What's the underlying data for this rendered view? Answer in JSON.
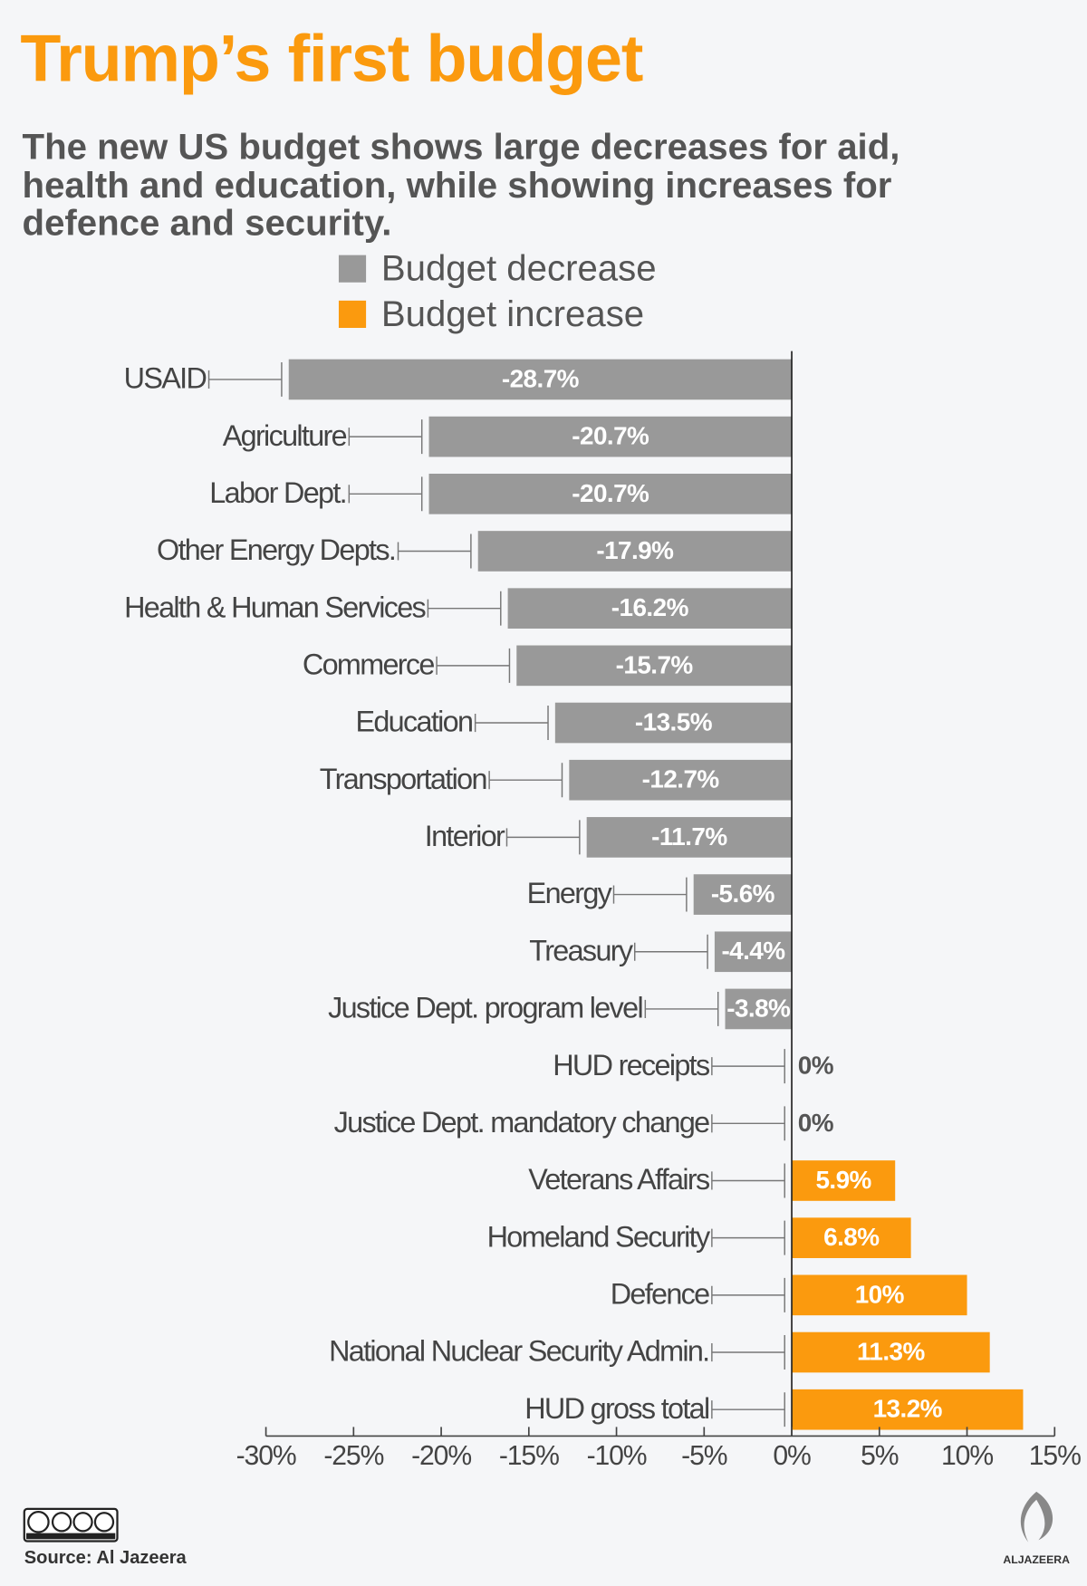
{
  "chart_data": {
    "type": "bar",
    "orientation": "horizontal",
    "title": "Trump’s first budget",
    "subtitle": [
      "The new US budget shows large decreases for aid,",
      "health and education, while showing increases for",
      "defence and security."
    ],
    "legend": [
      {
        "name": "Budget decrease",
        "color": "#999999"
      },
      {
        "name": "Budget increase",
        "color": "#fb9a0e"
      }
    ],
    "categories": [
      "USAID",
      "Agriculture",
      "Labor Dept.",
      "Other Energy Depts.",
      "Health & Human Services",
      "Commerce",
      "Education",
      "Transportation",
      "Interior",
      "Energy",
      "Treasury",
      "Justice Dept. program level",
      "HUD receipts",
      "Justice Dept. mandatory change",
      "Veterans Affairs",
      "Homeland Security",
      "Defence",
      "National Nuclear Security Admin.",
      "HUD gross total"
    ],
    "values": [
      -28.7,
      -20.7,
      -20.7,
      -17.9,
      -16.2,
      -15.7,
      -13.5,
      -12.7,
      -11.7,
      -5.6,
      -4.4,
      -3.8,
      0,
      0,
      5.9,
      6.8,
      10,
      11.3,
      13.2
    ],
    "value_labels": [
      "-28.7%",
      "-20.7%",
      "-20.7%",
      "-17.9%",
      "-16.2%",
      "-15.7%",
      "-13.5%",
      "-12.7%",
      "-11.7%",
      "-5.6%",
      "-4.4%",
      "-3.8%",
      "0%",
      "0%",
      "5.9%",
      "6.8%",
      "10%",
      "11.3%",
      "13.2%"
    ],
    "xlim": [
      -30,
      15
    ],
    "xticks": [
      {
        "value": -30,
        "label": "-30%"
      },
      {
        "value": -25,
        "label": "-25%"
      },
      {
        "value": -20,
        "label": "-20%"
      },
      {
        "value": -15,
        "label": "-15%"
      },
      {
        "value": -10,
        "label": "-10%"
      },
      {
        "value": -5,
        "label": "-5%"
      },
      {
        "value": 0,
        "label": "0%"
      },
      {
        "value": 5,
        "label": "5%"
      },
      {
        "value": 10,
        "label": "10%"
      },
      {
        "value": 15,
        "label": "15%"
      }
    ],
    "source": "Source: Al Jazeera",
    "logo": "ALJAZEERA"
  }
}
